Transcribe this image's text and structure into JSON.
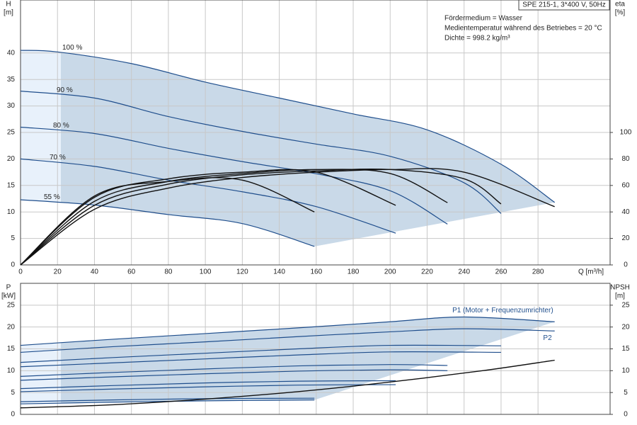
{
  "chart_data": [
    {
      "type": "line",
      "info": [
        "SPE 215-1, 3*400 V, 50Hz",
        "Fördermedium = Wasser",
        "Medientemperatur während des Betriebes = 20 °C",
        "Dichte = 998.2 kg/m³"
      ],
      "ylabel": [
        "H",
        "[m]"
      ],
      "y2label": [
        "eta",
        "[%]"
      ],
      "xlabel": "Q [m³/h]",
      "xlim": [
        0,
        319
      ],
      "xticks": [
        0,
        20,
        40,
        60,
        80,
        100,
        120,
        140,
        160,
        180,
        200,
        220,
        240,
        260,
        280
      ],
      "ylim": [
        0,
        50
      ],
      "yticks": [
        0,
        5,
        10,
        15,
        20,
        25,
        30,
        35,
        40
      ],
      "y2lim": [
        0,
        200
      ],
      "y2ticks": [
        0,
        20,
        40,
        60,
        80,
        100
      ],
      "grid": true,
      "series": [
        {
          "name": "100 %",
          "color": "#1f4e8c",
          "x": [
            0,
            20,
            60,
            100,
            140,
            180,
            220,
            260,
            289
          ],
          "values": [
            40.5,
            40.2,
            38,
            34.5,
            31.5,
            28.5,
            25.5,
            19,
            11.8
          ]
        },
        {
          "name": "90 %",
          "color": "#1f4e8c",
          "x": [
            0,
            40,
            80,
            120,
            160,
            200,
            240,
            260
          ],
          "values": [
            32.8,
            31.5,
            28,
            25.2,
            22.8,
            20.5,
            15.5,
            9.7
          ]
        },
        {
          "name": "80 %",
          "color": "#1f4e8c",
          "x": [
            0,
            40,
            80,
            120,
            160,
            200,
            231
          ],
          "values": [
            26,
            24.8,
            22,
            19.5,
            17.2,
            14,
            7.7
          ]
        },
        {
          "name": "70 %",
          "color": "#1f4e8c",
          "x": [
            0,
            40,
            80,
            120,
            160,
            203
          ],
          "values": [
            20,
            18.6,
            16,
            13.8,
            11,
            6
          ]
        },
        {
          "name": "55 %",
          "color": "#1f4e8c",
          "x": [
            0,
            40,
            80,
            120,
            159
          ],
          "values": [
            12.3,
            11.3,
            9.5,
            7.8,
            3.5
          ]
        },
        {
          "color": "#111111",
          "axis": "y2",
          "x": [
            0,
            40,
            80,
            120,
            160,
            200,
            240,
            289
          ],
          "values": [
            0,
            42,
            58,
            66,
            70,
            72,
            70,
            44
          ]
        },
        {
          "color": "#111111",
          "axis": "y2",
          "x": [
            0,
            40,
            80,
            120,
            160,
            200,
            240,
            260
          ],
          "values": [
            0,
            45,
            61,
            68,
            71,
            72,
            65,
            46
          ]
        },
        {
          "color": "#111111",
          "axis": "y2",
          "x": [
            0,
            40,
            80,
            120,
            160,
            200,
            231
          ],
          "values": [
            0,
            48,
            63,
            69,
            72,
            69,
            47
          ]
        },
        {
          "color": "#111111",
          "axis": "y2",
          "x": [
            0,
            40,
            80,
            120,
            160,
            203
          ],
          "values": [
            0,
            51,
            65,
            70,
            70,
            45
          ]
        },
        {
          "color": "#111111",
          "axis": "y2",
          "x": [
            0,
            40,
            80,
            120,
            159
          ],
          "values": [
            0,
            52,
            63,
            64,
            40
          ]
        }
      ]
    },
    {
      "type": "line",
      "ylabel": [
        "P",
        "[kW]"
      ],
      "y2label": [
        "NPSH",
        "[m]"
      ],
      "xlim": [
        0,
        319
      ],
      "ylim": [
        0,
        30
      ],
      "yticks": [
        0,
        5,
        10,
        15,
        20,
        25
      ],
      "y2lim": [
        0,
        30
      ],
      "y2ticks": [
        0,
        5,
        10,
        15,
        20,
        25
      ],
      "grid": true,
      "series": [
        {
          "name": "P1 (Motor + Frequenzumrichter)",
          "color": "#1f4e8c",
          "x": [
            0,
            50,
            100,
            150,
            200,
            240,
            289
          ],
          "values": [
            15.8,
            17.2,
            18.5,
            19.8,
            21.2,
            22.3,
            21.2
          ]
        },
        {
          "name": "P2",
          "color": "#1f4e8c",
          "x": [
            0,
            50,
            100,
            150,
            200,
            240,
            289
          ],
          "values": [
            14.2,
            15.5,
            16.6,
            17.8,
            18.9,
            19.6,
            19.1
          ]
        },
        {
          "color": "#1f4e8c",
          "x": [
            0,
            50,
            100,
            150,
            200,
            260
          ],
          "values": [
            11.9,
            13,
            14,
            15,
            15.8,
            15.7
          ]
        },
        {
          "color": "#1f4e8c",
          "x": [
            0,
            50,
            100,
            150,
            200,
            260
          ],
          "values": [
            10.9,
            11.8,
            12.7,
            13.6,
            14.3,
            14.2
          ]
        },
        {
          "color": "#1f4e8c",
          "x": [
            0,
            50,
            100,
            150,
            200,
            231
          ],
          "values": [
            8.7,
            9.6,
            10.4,
            11.1,
            11.4,
            11.2
          ]
        },
        {
          "color": "#1f4e8c",
          "x": [
            0,
            50,
            100,
            150,
            200,
            231
          ],
          "values": [
            7.8,
            8.6,
            9.3,
            9.9,
            10.2,
            10
          ]
        },
        {
          "color": "#1f4e8c",
          "x": [
            0,
            50,
            100,
            150,
            203
          ],
          "values": [
            5.9,
            6.6,
            7.2,
            7.6,
            7.7
          ]
        },
        {
          "color": "#1f4e8c",
          "x": [
            0,
            50,
            100,
            150,
            203
          ],
          "values": [
            5.2,
            5.8,
            6.3,
            6.7,
            6.8
          ]
        },
        {
          "color": "#1f4e8c",
          "x": [
            0,
            50,
            100,
            159
          ],
          "values": [
            2.9,
            3.3,
            3.6,
            3.7
          ]
        },
        {
          "color": "#1f4e8c",
          "x": [
            0,
            50,
            100,
            159
          ],
          "values": [
            2.4,
            2.8,
            3.1,
            3.3
          ]
        },
        {
          "color": "#111111",
          "axis": "y2",
          "x": [
            0,
            50,
            100,
            150,
            200,
            250,
            289
          ],
          "values": [
            1.5,
            2.2,
            3.5,
            5.2,
            7.4,
            10,
            12.4
          ]
        }
      ]
    }
  ]
}
